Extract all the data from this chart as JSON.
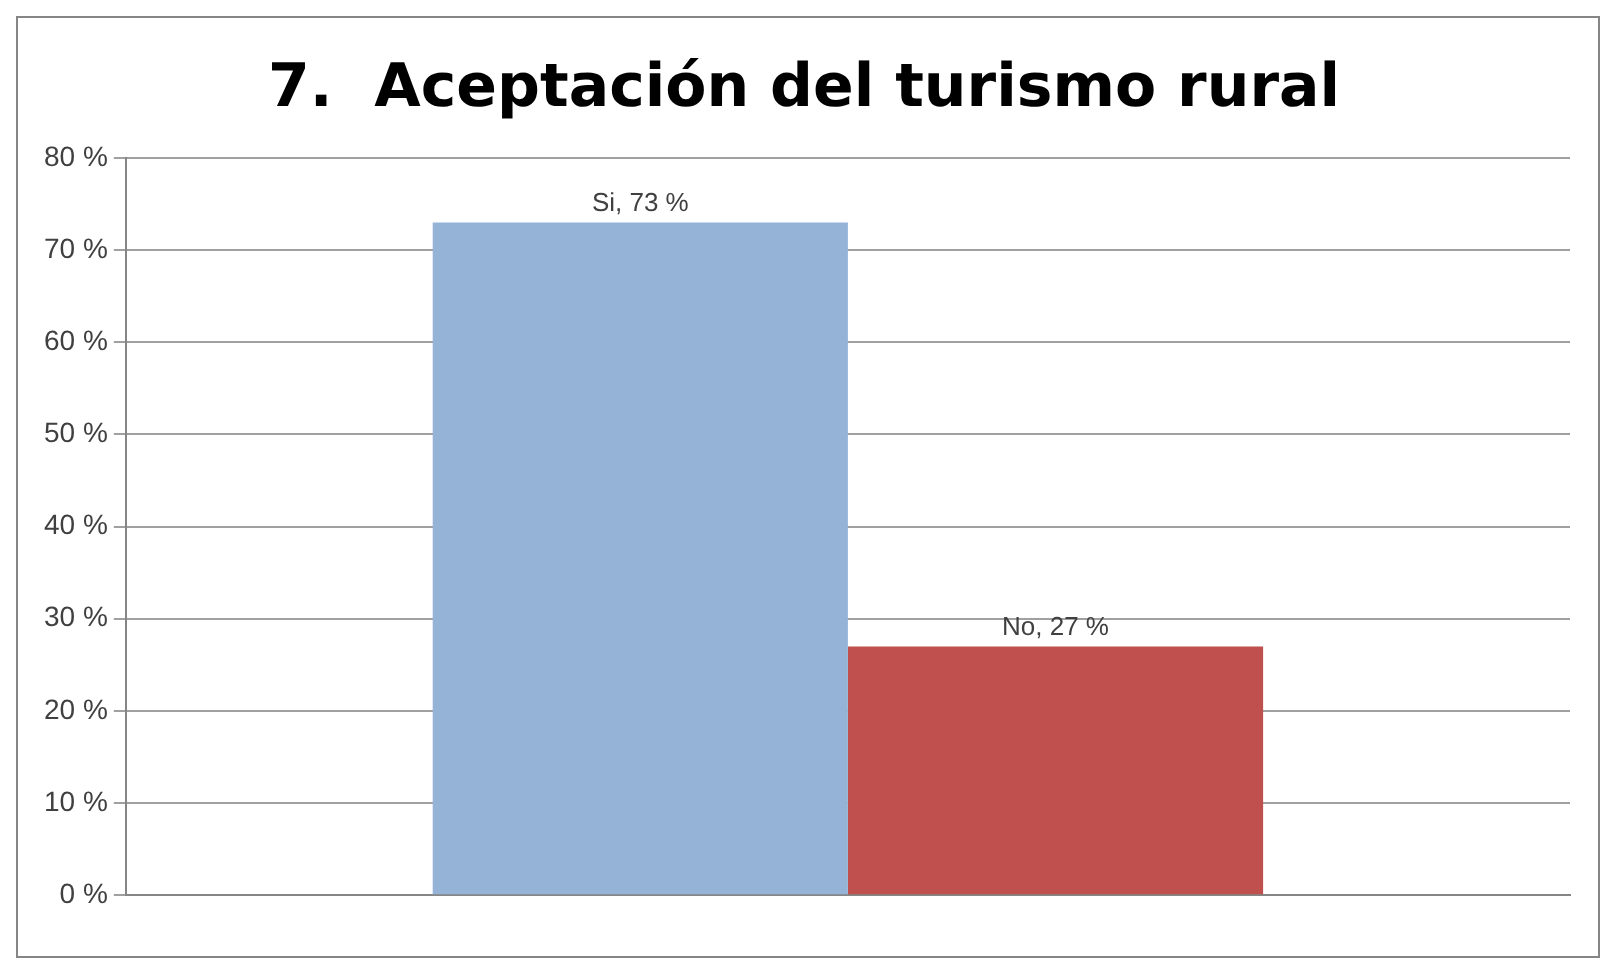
{
  "chart_data": {
    "type": "bar",
    "title": "7.  Aceptación del turismo rural",
    "categories": [
      null
    ],
    "series": [
      {
        "color": "#95b3d7",
        "values": [
          73
        ],
        "value_labels": [
          "Si, 73 %"
        ]
      },
      {
        "color": "#c0504d",
        "values": [
          27
        ],
        "value_labels": [
          "No, 27 %"
        ]
      }
    ],
    "ylim": [
      0,
      80
    ],
    "yticks": [
      {
        "value": 0,
        "label": "0 %"
      },
      {
        "value": 10,
        "label": "10 %"
      },
      {
        "value": 20,
        "label": "20 %"
      },
      {
        "value": 30,
        "label": "30 %"
      },
      {
        "value": 40,
        "label": "40 %"
      },
      {
        "value": 50,
        "label": "50 %"
      },
      {
        "value": 60,
        "label": "60 %"
      },
      {
        "value": 70,
        "label": "70 %"
      },
      {
        "value": 80,
        "label": "80 %"
      }
    ],
    "grid": "y",
    "legend": false
  }
}
